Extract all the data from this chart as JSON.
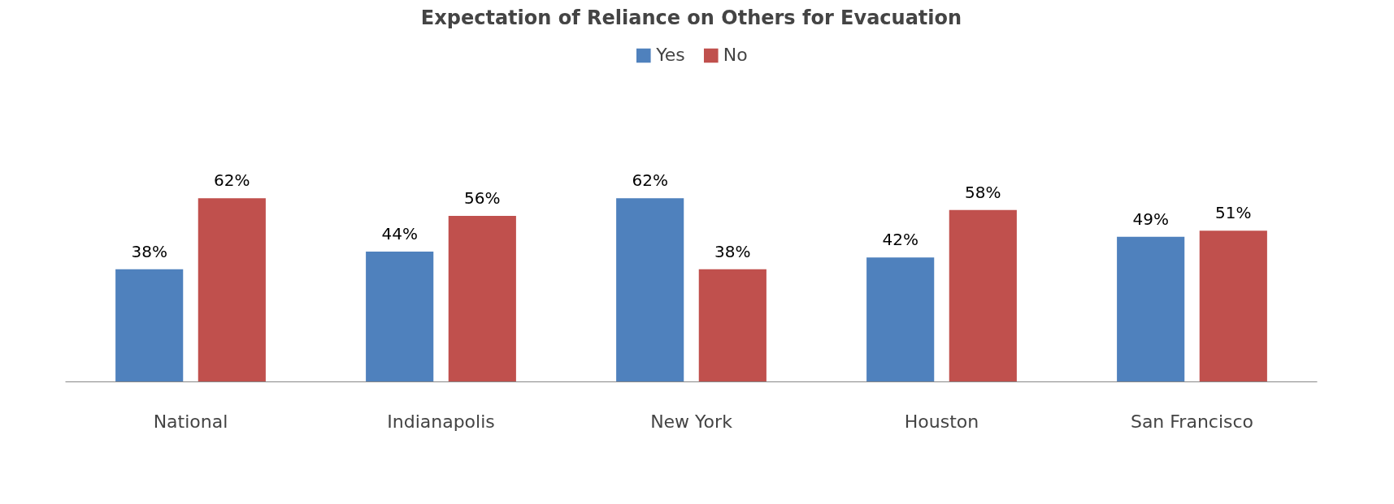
{
  "chart_data": {
    "type": "bar",
    "title": "Expectation of Reliance on Others for Evacuation",
    "categories": [
      "National",
      "Indianapolis",
      "New York",
      "Houston",
      "San Francisco"
    ],
    "series": [
      {
        "name": "Yes",
        "color": "#4f81bd",
        "values": [
          38,
          44,
          62,
          42,
          49
        ],
        "value_labels": [
          "38%",
          "44%",
          "62%",
          "42%",
          "49%"
        ]
      },
      {
        "name": "No",
        "color": "#c0504d",
        "values": [
          62,
          56,
          38,
          58,
          51
        ],
        "value_labels": [
          "62%",
          "56%",
          "38%",
          "58%",
          "51%"
        ]
      }
    ],
    "legend": "top"
  }
}
